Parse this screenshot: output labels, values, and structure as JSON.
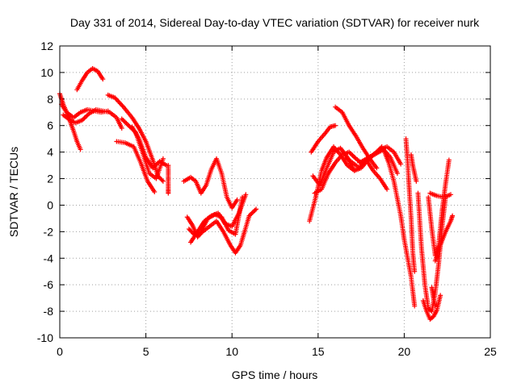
{
  "chart_data": {
    "type": "scatter",
    "title": "Day 331 of 2014, Sidereal Day-to-day VTEC variation (SDTVAR) for receiver nurk",
    "xlabel": "GPS time / hours",
    "ylabel": "SDTVAR / TECUs",
    "xlim": [
      0,
      25
    ],
    "ylim": [
      -10,
      12
    ],
    "xticks": [
      0,
      5,
      10,
      15,
      20,
      25
    ],
    "yticks": [
      -10,
      -8,
      -6,
      -4,
      -2,
      0,
      2,
      4,
      6,
      8,
      10,
      12
    ],
    "grid": true,
    "marker": "plus",
    "marker_color": "#ff0000",
    "series": [
      {
        "x": [
          0,
          0.2,
          0.4,
          0.6,
          0.8,
          1.0,
          1.2
        ],
        "y": [
          8.4,
          7.6,
          7.0,
          6.3,
          5.6,
          4.8,
          4.2
        ]
      },
      {
        "x": [
          0.2,
          0.5,
          0.9,
          1.3,
          1.7,
          2.1,
          2.5,
          2.9,
          3.3,
          3.6
        ],
        "y": [
          6.8,
          6.5,
          6.2,
          6.4,
          6.9,
          7.2,
          7.1,
          7.0,
          6.6,
          5.8
        ]
      },
      {
        "x": [
          0.1,
          0.4,
          0.8,
          1.2,
          1.6,
          2.0,
          2.4,
          2.8
        ],
        "y": [
          7.6,
          7.0,
          6.6,
          7.0,
          7.2,
          7.1,
          7.0,
          7.1
        ]
      },
      {
        "x": [
          1.0,
          1.3,
          1.6,
          1.9,
          2.2,
          2.5
        ],
        "y": [
          8.7,
          9.4,
          10.0,
          10.3,
          10.1,
          9.5
        ]
      },
      {
        "x": [
          2.8,
          3.2,
          3.7,
          4.2,
          4.6,
          5.0,
          5.4,
          5.7,
          6.0
        ],
        "y": [
          8.3,
          8.1,
          7.4,
          6.6,
          5.8,
          4.8,
          3.4,
          2.2,
          1.8
        ]
      },
      {
        "x": [
          3.3,
          3.8,
          4.3,
          4.7,
          5.1,
          5.5
        ],
        "y": [
          4.8,
          4.7,
          4.4,
          3.2,
          1.8,
          1.0
        ]
      },
      {
        "x": [
          3.6,
          4.0,
          4.4,
          4.8,
          5.2,
          5.6,
          6.0
        ],
        "y": [
          6.5,
          6.0,
          5.5,
          4.0,
          2.4,
          2.0,
          3.5
        ]
      },
      {
        "x": [
          4.2,
          4.6,
          5.0,
          5.4,
          5.8,
          6.2
        ],
        "y": [
          5.9,
          5.0,
          3.6,
          2.8,
          3.3,
          3.0
        ]
      },
      {
        "x": [
          6.3,
          6.3,
          6.3,
          6.3,
          6.3
        ],
        "y": [
          3.0,
          2.4,
          1.8,
          1.2,
          0.9
        ]
      },
      {
        "x": [
          7.2,
          7.6,
          7.9,
          8.2,
          8.5,
          8.8,
          9.1,
          9.4,
          9.7,
          10.0,
          10.3
        ],
        "y": [
          1.8,
          2.1,
          1.8,
          0.9,
          1.5,
          2.7,
          3.5,
          2.4,
          0.6,
          -0.2,
          0.4
        ]
      },
      {
        "x": [
          7.4,
          7.7,
          8.0,
          8.3,
          8.7,
          9.1,
          9.5,
          9.9,
          10.2,
          10.5,
          11.0,
          11.4
        ],
        "y": [
          -0.9,
          -1.5,
          -2.4,
          -2.0,
          -1.6,
          -1.2,
          -2.0,
          -3.0,
          -3.6,
          -3.0,
          -0.8,
          -0.3
        ]
      },
      {
        "x": [
          7.6,
          8.0,
          8.4,
          8.8,
          9.2,
          9.6,
          10.0,
          10.4,
          10.8
        ],
        "y": [
          -2.8,
          -2.0,
          -1.2,
          -0.8,
          -0.6,
          -1.4,
          -1.6,
          -0.6,
          0.8
        ]
      },
      {
        "x": [
          7.5,
          7.8,
          8.2,
          8.6,
          9.0,
          9.4,
          9.8,
          10.2,
          10.6
        ],
        "y": [
          -1.8,
          -2.2,
          -2.0,
          -1.0,
          -0.7,
          -0.9,
          -1.9,
          -2.2,
          0.6
        ]
      },
      {
        "x": [
          14.5,
          14.9,
          15.2,
          15.5,
          15.9,
          16.3,
          16.7,
          17.1,
          17.5,
          17.9,
          18.3,
          18.7
        ],
        "y": [
          -1.2,
          0.8,
          2.6,
          3.6,
          4.4,
          3.8,
          3.0,
          2.6,
          2.8,
          3.4,
          3.9,
          4.4
        ]
      },
      {
        "x": [
          14.6,
          15.0,
          15.4,
          15.7,
          16.0
        ],
        "y": [
          4.0,
          4.8,
          5.4,
          5.9,
          6.0
        ]
      },
      {
        "x": [
          14.7,
          15.1,
          15.5,
          15.9,
          16.3,
          16.7,
          17.1
        ],
        "y": [
          2.2,
          1.5,
          2.8,
          4.0,
          4.3,
          3.6,
          2.6
        ]
      },
      {
        "x": [
          14.8,
          15.2,
          15.6,
          16.0,
          16.4,
          16.8,
          17.2,
          17.6,
          18.0,
          18.4,
          18.8,
          19.2,
          19.6
        ],
        "y": [
          0.9,
          1.2,
          2.4,
          3.2,
          3.8,
          4.0,
          3.5,
          3.1,
          3.6,
          3.9,
          4.2,
          3.6,
          2.4
        ]
      },
      {
        "x": [
          16.0,
          16.4,
          16.8,
          17.2,
          17.6,
          18.0,
          18.4
        ],
        "y": [
          7.4,
          7.0,
          6.0,
          5.2,
          4.3,
          3.5,
          2.8
        ]
      },
      {
        "x": [
          16.6,
          17.0,
          17.4,
          17.8,
          18.2,
          18.6,
          19.0
        ],
        "y": [
          3.6,
          3.2,
          2.8,
          3.4,
          2.6,
          2.0,
          1.2
        ]
      },
      {
        "x": [
          17.4,
          17.8,
          18.2,
          18.6,
          19.0,
          19.4,
          19.8
        ],
        "y": [
          3.2,
          3.5,
          3.8,
          4.2,
          4.4,
          4.0,
          3.1
        ]
      },
      {
        "x": [
          18.8,
          19.1,
          19.4,
          19.6,
          19.8,
          20.0,
          20.2,
          20.4,
          20.6
        ],
        "y": [
          4.2,
          3.2,
          1.8,
          0.5,
          -0.8,
          -2.6,
          -4.0,
          -5.4,
          -7.6
        ]
      },
      {
        "x": [
          20.1,
          20.2,
          20.3,
          20.4,
          20.5,
          20.6
        ],
        "y": [
          5.0,
          3.2,
          1.0,
          -1.0,
          -3.6,
          -5.0
        ]
      },
      {
        "x": [
          20.4,
          20.5,
          20.6,
          20.7
        ],
        "y": [
          3.8,
          3.0,
          2.4,
          1.8
        ]
      },
      {
        "x": [
          20.8,
          21.0,
          21.2,
          21.4,
          21.6,
          21.8,
          22.0,
          22.2,
          22.4
        ],
        "y": [
          0.9,
          -3.2,
          -6.0,
          -7.8,
          -8.0,
          -6.6,
          -4.4,
          -1.6,
          0.6
        ]
      },
      {
        "x": [
          21.1,
          21.3,
          21.5,
          21.7,
          21.9,
          22.1
        ],
        "y": [
          -7.2,
          -8.0,
          -8.6,
          -8.4,
          -7.9,
          -6.8
        ]
      },
      {
        "x": [
          21.4,
          21.6,
          21.8,
          22.0,
          22.2,
          22.4,
          22.6
        ],
        "y": [
          0.6,
          -1.8,
          -3.8,
          -3.0,
          -0.4,
          1.6,
          3.4
        ]
      },
      {
        "x": [
          21.5,
          21.9,
          22.3,
          22.7
        ],
        "y": [
          0.9,
          0.7,
          0.6,
          0.8
        ]
      },
      {
        "x": [
          21.8,
          22.1,
          22.4,
          22.7,
          22.8
        ],
        "y": [
          -4.2,
          -3.0,
          -2.0,
          -1.2,
          -0.8
        ]
      },
      {
        "x": [
          21.6,
          21.7,
          21.8
        ],
        "y": [
          -6.2,
          -7.0,
          -7.6
        ]
      }
    ]
  }
}
